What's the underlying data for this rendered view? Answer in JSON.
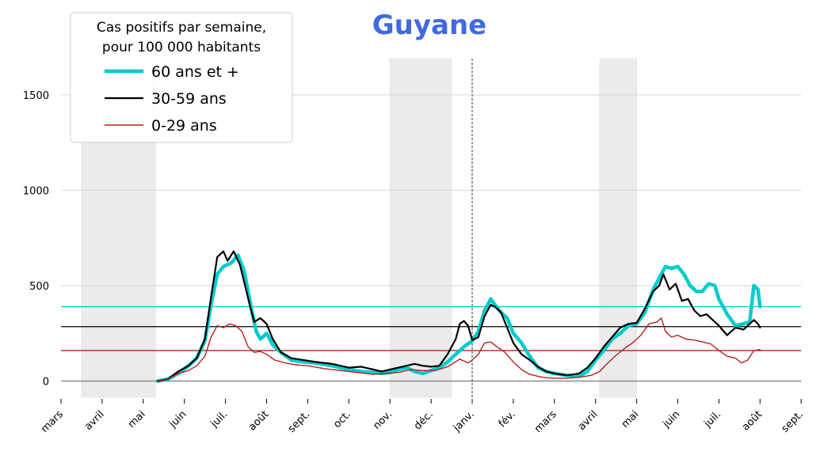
{
  "chart_data": {
    "type": "line",
    "title": "Guyane",
    "xlabel": "",
    "ylabel": "",
    "ylim": [
      -85,
      1690
    ],
    "yticks": [
      0,
      500,
      1000,
      1500
    ],
    "x_ticks": [
      "mars",
      "avril",
      "mai",
      "juin",
      "juil.",
      "août",
      "sept.",
      "oct.",
      "nov.",
      "déc.",
      "janv.",
      "fév.",
      "mars",
      "avril",
      "mai",
      "juin",
      "juil.",
      "août",
      "sept."
    ],
    "grid": true,
    "legend": {
      "title_lines": [
        "Cas positifs par semaine,",
        "pour 100 000 habitants"
      ],
      "placement": "top-left"
    },
    "shaded_periods": [
      [
        0.5,
        2.3
      ],
      [
        8.0,
        9.5
      ],
      [
        13.1,
        14.0
      ]
    ],
    "vline_month": 10.0,
    "series": [
      {
        "name": "60 ans et +",
        "color": "#00cccc",
        "ref_level": 390,
        "points": [
          [
            2.35,
            0
          ],
          [
            2.6,
            10
          ],
          [
            2.85,
            40
          ],
          [
            3.1,
            80
          ],
          [
            3.3,
            120
          ],
          [
            3.5,
            210
          ],
          [
            3.65,
            400
          ],
          [
            3.8,
            560
          ],
          [
            3.95,
            600
          ],
          [
            4.15,
            620
          ],
          [
            4.3,
            660
          ],
          [
            4.45,
            580
          ],
          [
            4.55,
            470
          ],
          [
            4.65,
            360
          ],
          [
            4.75,
            260
          ],
          [
            4.85,
            220
          ],
          [
            5.0,
            250
          ],
          [
            5.15,
            190
          ],
          [
            5.35,
            150
          ],
          [
            5.6,
            110
          ],
          [
            5.9,
            100
          ],
          [
            6.2,
            95
          ],
          [
            6.6,
            80
          ],
          [
            7.0,
            60
          ],
          [
            7.3,
            50
          ],
          [
            7.6,
            45
          ],
          [
            7.8,
            40
          ],
          [
            8.0,
            45
          ],
          [
            8.2,
            60
          ],
          [
            8.4,
            70
          ],
          [
            8.6,
            50
          ],
          [
            8.8,
            40
          ],
          [
            9.0,
            55
          ],
          [
            9.2,
            70
          ],
          [
            9.4,
            100
          ],
          [
            9.6,
            140
          ],
          [
            9.8,
            180
          ],
          [
            10.0,
            210
          ],
          [
            10.15,
            260
          ],
          [
            10.3,
            370
          ],
          [
            10.45,
            430
          ],
          [
            10.55,
            400
          ],
          [
            10.7,
            360
          ],
          [
            10.85,
            330
          ],
          [
            11.0,
            250
          ],
          [
            11.2,
            200
          ],
          [
            11.4,
            130
          ],
          [
            11.6,
            70
          ],
          [
            11.8,
            50
          ],
          [
            12.0,
            40
          ],
          [
            12.3,
            30
          ],
          [
            12.6,
            25
          ],
          [
            12.8,
            50
          ],
          [
            13.0,
            110
          ],
          [
            13.2,
            160
          ],
          [
            13.4,
            220
          ],
          [
            13.6,
            250
          ],
          [
            13.8,
            290
          ],
          [
            14.0,
            300
          ],
          [
            14.2,
            360
          ],
          [
            14.4,
            480
          ],
          [
            14.55,
            540
          ],
          [
            14.7,
            600
          ],
          [
            14.85,
            590
          ],
          [
            15.0,
            600
          ],
          [
            15.15,
            560
          ],
          [
            15.3,
            500
          ],
          [
            15.45,
            470
          ],
          [
            15.6,
            470
          ],
          [
            15.75,
            510
          ],
          [
            15.9,
            500
          ],
          [
            16.0,
            430
          ],
          [
            16.2,
            350
          ],
          [
            16.4,
            290
          ],
          [
            16.6,
            300
          ],
          [
            16.75,
            310
          ],
          [
            16.85,
            500
          ],
          [
            16.95,
            480
          ],
          [
            17.0,
            390
          ]
        ]
      },
      {
        "name": "30-59 ans",
        "color": "#000000",
        "ref_level": 285,
        "points": [
          [
            2.35,
            0
          ],
          [
            2.6,
            10
          ],
          [
            2.85,
            50
          ],
          [
            3.1,
            80
          ],
          [
            3.3,
            120
          ],
          [
            3.5,
            220
          ],
          [
            3.65,
            440
          ],
          [
            3.8,
            650
          ],
          [
            3.95,
            680
          ],
          [
            4.05,
            630
          ],
          [
            4.2,
            680
          ],
          [
            4.35,
            610
          ],
          [
            4.5,
            480
          ],
          [
            4.6,
            390
          ],
          [
            4.7,
            310
          ],
          [
            4.85,
            330
          ],
          [
            5.0,
            300
          ],
          [
            5.15,
            220
          ],
          [
            5.35,
            150
          ],
          [
            5.6,
            120
          ],
          [
            5.9,
            110
          ],
          [
            6.2,
            100
          ],
          [
            6.6,
            90
          ],
          [
            7.0,
            70
          ],
          [
            7.3,
            75
          ],
          [
            7.6,
            60
          ],
          [
            7.8,
            50
          ],
          [
            8.0,
            60
          ],
          [
            8.2,
            70
          ],
          [
            8.4,
            80
          ],
          [
            8.6,
            90
          ],
          [
            8.8,
            80
          ],
          [
            9.0,
            75
          ],
          [
            9.2,
            80
          ],
          [
            9.4,
            140
          ],
          [
            9.6,
            220
          ],
          [
            9.7,
            300
          ],
          [
            9.8,
            315
          ],
          [
            9.9,
            290
          ],
          [
            10.0,
            215
          ],
          [
            10.15,
            230
          ],
          [
            10.3,
            340
          ],
          [
            10.45,
            400
          ],
          [
            10.55,
            390
          ],
          [
            10.7,
            360
          ],
          [
            10.85,
            280
          ],
          [
            11.0,
            200
          ],
          [
            11.2,
            140
          ],
          [
            11.4,
            110
          ],
          [
            11.6,
            75
          ],
          [
            11.8,
            50
          ],
          [
            12.0,
            40
          ],
          [
            12.3,
            30
          ],
          [
            12.6,
            40
          ],
          [
            12.8,
            70
          ],
          [
            13.0,
            120
          ],
          [
            13.2,
            180
          ],
          [
            13.4,
            230
          ],
          [
            13.6,
            280
          ],
          [
            13.8,
            300
          ],
          [
            14.0,
            305
          ],
          [
            14.2,
            380
          ],
          [
            14.4,
            470
          ],
          [
            14.55,
            500
          ],
          [
            14.65,
            560
          ],
          [
            14.8,
            480
          ],
          [
            14.95,
            510
          ],
          [
            15.1,
            420
          ],
          [
            15.25,
            430
          ],
          [
            15.4,
            370
          ],
          [
            15.55,
            340
          ],
          [
            15.7,
            350
          ],
          [
            15.85,
            320
          ],
          [
            16.0,
            290
          ],
          [
            16.2,
            240
          ],
          [
            16.4,
            280
          ],
          [
            16.6,
            270
          ],
          [
            16.75,
            300
          ],
          [
            16.85,
            320
          ],
          [
            16.95,
            300
          ],
          [
            17.0,
            280
          ]
        ]
      },
      {
        "name": "0-29 ans",
        "color": "#b22222",
        "ref_level": 160,
        "points": [
          [
            2.35,
            0
          ],
          [
            2.6,
            10
          ],
          [
            2.85,
            40
          ],
          [
            3.1,
            55
          ],
          [
            3.3,
            80
          ],
          [
            3.5,
            130
          ],
          [
            3.65,
            230
          ],
          [
            3.8,
            290
          ],
          [
            3.95,
            280
          ],
          [
            4.1,
            300
          ],
          [
            4.25,
            290
          ],
          [
            4.4,
            260
          ],
          [
            4.55,
            180
          ],
          [
            4.7,
            150
          ],
          [
            4.85,
            155
          ],
          [
            5.0,
            140
          ],
          [
            5.2,
            110
          ],
          [
            5.45,
            95
          ],
          [
            5.7,
            85
          ],
          [
            6.0,
            80
          ],
          [
            6.4,
            65
          ],
          [
            6.8,
            55
          ],
          [
            7.2,
            45
          ],
          [
            7.6,
            35
          ],
          [
            7.9,
            40
          ],
          [
            8.2,
            45
          ],
          [
            8.5,
            60
          ],
          [
            8.8,
            55
          ],
          [
            9.1,
            55
          ],
          [
            9.4,
            75
          ],
          [
            9.7,
            115
          ],
          [
            9.9,
            95
          ],
          [
            10.0,
            110
          ],
          [
            10.15,
            140
          ],
          [
            10.3,
            200
          ],
          [
            10.45,
            205
          ],
          [
            10.6,
            180
          ],
          [
            10.8,
            150
          ],
          [
            11.0,
            100
          ],
          [
            11.2,
            60
          ],
          [
            11.4,
            35
          ],
          [
            11.7,
            20
          ],
          [
            12.0,
            15
          ],
          [
            12.3,
            15
          ],
          [
            12.6,
            20
          ],
          [
            12.9,
            30
          ],
          [
            13.1,
            50
          ],
          [
            13.3,
            95
          ],
          [
            13.5,
            135
          ],
          [
            13.7,
            170
          ],
          [
            13.9,
            200
          ],
          [
            14.1,
            240
          ],
          [
            14.3,
            300
          ],
          [
            14.5,
            310
          ],
          [
            14.6,
            330
          ],
          [
            14.7,
            260
          ],
          [
            14.85,
            230
          ],
          [
            15.0,
            240
          ],
          [
            15.2,
            220
          ],
          [
            15.4,
            215
          ],
          [
            15.6,
            205
          ],
          [
            15.8,
            195
          ],
          [
            16.0,
            160
          ],
          [
            16.2,
            130
          ],
          [
            16.4,
            120
          ],
          [
            16.55,
            95
          ],
          [
            16.7,
            110
          ],
          [
            16.85,
            160
          ],
          [
            17.0,
            165
          ]
        ]
      }
    ]
  }
}
